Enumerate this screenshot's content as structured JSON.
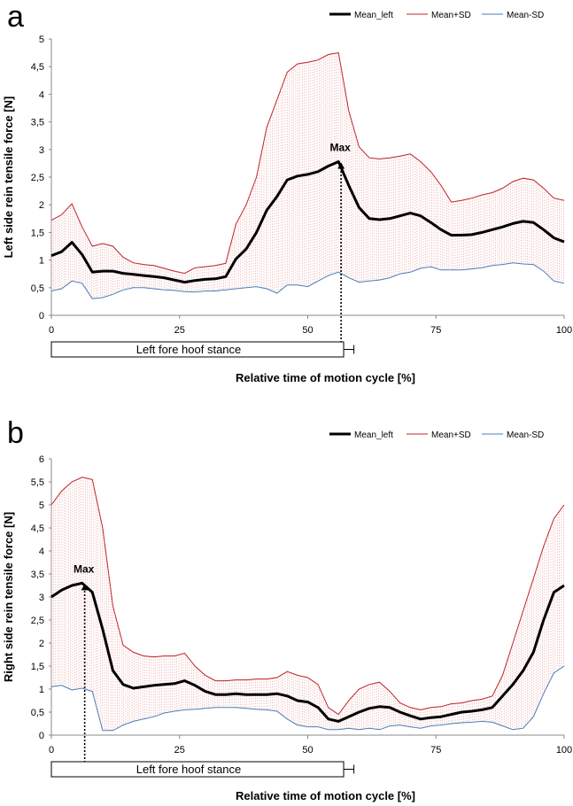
{
  "chart_data": [
    {
      "panel": "a",
      "type": "line",
      "title": "",
      "xlabel": "Relative time of motion cycle [%]",
      "ylabel": "Left side rein tensile force [N]",
      "xlim": [
        0,
        100
      ],
      "ylim": [
        0,
        5
      ],
      "xticks": [
        0,
        25,
        50,
        75,
        100
      ],
      "yticks": [
        "0",
        "0,5",
        "1",
        "1,5",
        "2",
        "2,5",
        "3",
        "3,5",
        "4",
        "4,5",
        "5"
      ],
      "legend": [
        "Mean_left",
        "Mean+SD",
        "Mean-SD"
      ],
      "legend_position": "top-right",
      "colors": {
        "mean": "#000000",
        "plus": "#c0262c",
        "minus": "#4a7ebb",
        "hatch": "#e89a9a"
      },
      "annotation": {
        "label": "Max",
        "x": 56.5,
        "y": 2.78
      },
      "stance_bar": {
        "label": "Left fore hoof stance",
        "start": 0,
        "end": 57,
        "error": 2
      },
      "series": [
        {
          "name": "Mean_left",
          "x": [
            0,
            2,
            4,
            6,
            8,
            10,
            12,
            14,
            16,
            18,
            20,
            22,
            24,
            26,
            28,
            30,
            32,
            34,
            36,
            38,
            40,
            42,
            44,
            46,
            48,
            50,
            52,
            54,
            56,
            58,
            60,
            62,
            64,
            66,
            68,
            70,
            72,
            74,
            76,
            78,
            80,
            82,
            84,
            86,
            88,
            90,
            92,
            94,
            96,
            98,
            100
          ],
          "values": [
            1.08,
            1.15,
            1.32,
            1.1,
            0.78,
            0.8,
            0.8,
            0.76,
            0.74,
            0.72,
            0.7,
            0.68,
            0.64,
            0.6,
            0.63,
            0.65,
            0.66,
            0.7,
            1.02,
            1.2,
            1.5,
            1.9,
            2.15,
            2.45,
            2.52,
            2.55,
            2.6,
            2.7,
            2.78,
            2.35,
            1.95,
            1.75,
            1.73,
            1.75,
            1.8,
            1.85,
            1.8,
            1.68,
            1.55,
            1.45,
            1.45,
            1.46,
            1.5,
            1.55,
            1.6,
            1.66,
            1.7,
            1.68,
            1.55,
            1.4,
            1.33
          ]
        },
        {
          "name": "Mean+SD",
          "x": [
            0,
            2,
            4,
            6,
            8,
            10,
            12,
            14,
            16,
            18,
            20,
            22,
            24,
            26,
            28,
            30,
            32,
            34,
            36,
            38,
            40,
            42,
            44,
            46,
            48,
            50,
            52,
            54,
            56,
            58,
            60,
            62,
            64,
            66,
            68,
            70,
            72,
            74,
            76,
            78,
            80,
            82,
            84,
            86,
            88,
            90,
            92,
            94,
            96,
            98,
            100
          ],
          "values": [
            1.72,
            1.82,
            2.02,
            1.6,
            1.25,
            1.3,
            1.25,
            1.05,
            0.95,
            0.92,
            0.9,
            0.85,
            0.8,
            0.76,
            0.86,
            0.88,
            0.9,
            0.94,
            1.65,
            2.0,
            2.5,
            3.4,
            3.9,
            4.4,
            4.55,
            4.58,
            4.62,
            4.72,
            4.75,
            3.7,
            3.05,
            2.85,
            2.83,
            2.85,
            2.88,
            2.92,
            2.78,
            2.6,
            2.35,
            2.05,
            2.08,
            2.12,
            2.18,
            2.22,
            2.3,
            2.42,
            2.48,
            2.45,
            2.3,
            2.12,
            2.08
          ]
        },
        {
          "name": "Mean-SD",
          "x": [
            0,
            2,
            4,
            6,
            8,
            10,
            12,
            14,
            16,
            18,
            20,
            22,
            24,
            26,
            28,
            30,
            32,
            34,
            36,
            38,
            40,
            42,
            44,
            46,
            48,
            50,
            52,
            54,
            56,
            58,
            60,
            62,
            64,
            66,
            68,
            70,
            72,
            74,
            76,
            78,
            80,
            82,
            84,
            86,
            88,
            90,
            92,
            94,
            96,
            98,
            100
          ],
          "values": [
            0.44,
            0.48,
            0.62,
            0.58,
            0.3,
            0.32,
            0.38,
            0.46,
            0.5,
            0.5,
            0.48,
            0.46,
            0.45,
            0.43,
            0.42,
            0.44,
            0.44,
            0.46,
            0.48,
            0.5,
            0.52,
            0.48,
            0.4,
            0.55,
            0.55,
            0.52,
            0.62,
            0.72,
            0.78,
            0.68,
            0.6,
            0.62,
            0.64,
            0.68,
            0.75,
            0.78,
            0.85,
            0.88,
            0.82,
            0.82,
            0.82,
            0.84,
            0.86,
            0.9,
            0.92,
            0.95,
            0.93,
            0.92,
            0.8,
            0.62,
            0.58
          ]
        }
      ]
    },
    {
      "panel": "b",
      "type": "line",
      "title": "",
      "xlabel": "Relative time of motion cycle [%]",
      "ylabel": "Right side rein tensile force [N]",
      "xlim": [
        0,
        100
      ],
      "ylim": [
        0,
        6
      ],
      "xticks": [
        0,
        25,
        50,
        75,
        100
      ],
      "yticks": [
        "0",
        "0,5",
        "1",
        "1,5",
        "2",
        "2,5",
        "3",
        "3,5",
        "4",
        "4,5",
        "5",
        "5,5",
        "6"
      ],
      "legend": [
        "Mean_left",
        "Mean+SD",
        "Mean-SD"
      ],
      "legend_position": "top-right",
      "colors": {
        "mean": "#000000",
        "plus": "#c0262c",
        "minus": "#4a7ebb",
        "hatch": "#e89a9a"
      },
      "annotation": {
        "label": "Max",
        "x": 6.5,
        "y": 3.3
      },
      "stance_bar": {
        "label": "Left fore hoof stance",
        "start": 0,
        "end": 57,
        "error": 2
      },
      "series": [
        {
          "name": "Mean_left",
          "x": [
            0,
            2,
            4,
            6,
            8,
            10,
            12,
            14,
            16,
            18,
            20,
            22,
            24,
            26,
            28,
            30,
            32,
            34,
            36,
            38,
            40,
            42,
            44,
            46,
            48,
            50,
            52,
            54,
            56,
            58,
            60,
            62,
            64,
            66,
            68,
            70,
            72,
            74,
            76,
            78,
            80,
            82,
            84,
            86,
            88,
            90,
            92,
            94,
            96,
            98,
            100
          ],
          "values": [
            3.0,
            3.15,
            3.25,
            3.3,
            3.1,
            2.3,
            1.4,
            1.1,
            1.02,
            1.05,
            1.08,
            1.1,
            1.12,
            1.18,
            1.08,
            0.95,
            0.88,
            0.88,
            0.9,
            0.88,
            0.88,
            0.88,
            0.9,
            0.85,
            0.75,
            0.72,
            0.6,
            0.35,
            0.3,
            0.4,
            0.5,
            0.58,
            0.62,
            0.6,
            0.5,
            0.42,
            0.35,
            0.38,
            0.4,
            0.45,
            0.5,
            0.52,
            0.55,
            0.6,
            0.85,
            1.1,
            1.4,
            1.8,
            2.5,
            3.1,
            3.25
          ]
        },
        {
          "name": "Mean+SD",
          "x": [
            0,
            2,
            4,
            6,
            8,
            10,
            12,
            14,
            16,
            18,
            20,
            22,
            24,
            26,
            28,
            30,
            32,
            34,
            36,
            38,
            40,
            42,
            44,
            46,
            48,
            50,
            52,
            54,
            56,
            58,
            60,
            62,
            64,
            66,
            68,
            70,
            72,
            74,
            76,
            78,
            80,
            82,
            84,
            86,
            88,
            90,
            92,
            94,
            96,
            98,
            100
          ],
          "values": [
            5.0,
            5.3,
            5.5,
            5.6,
            5.55,
            4.5,
            2.8,
            1.95,
            1.8,
            1.72,
            1.7,
            1.72,
            1.72,
            1.78,
            1.5,
            1.3,
            1.18,
            1.18,
            1.2,
            1.2,
            1.22,
            1.22,
            1.25,
            1.38,
            1.3,
            1.25,
            1.1,
            0.6,
            0.45,
            0.75,
            1.0,
            1.1,
            1.15,
            0.95,
            0.7,
            0.6,
            0.55,
            0.6,
            0.62,
            0.68,
            0.7,
            0.75,
            0.78,
            0.85,
            1.3,
            2.0,
            2.7,
            3.4,
            4.1,
            4.7,
            5.0
          ]
        },
        {
          "name": "Mean-SD",
          "x": [
            0,
            2,
            4,
            6,
            8,
            10,
            12,
            14,
            16,
            18,
            20,
            22,
            24,
            26,
            28,
            30,
            32,
            34,
            36,
            38,
            40,
            42,
            44,
            46,
            48,
            50,
            52,
            54,
            56,
            58,
            60,
            62,
            64,
            66,
            68,
            70,
            72,
            74,
            76,
            78,
            80,
            82,
            84,
            86,
            88,
            90,
            92,
            94,
            96,
            98,
            100
          ],
          "values": [
            1.05,
            1.08,
            0.98,
            1.02,
            0.95,
            0.1,
            0.1,
            0.22,
            0.3,
            0.35,
            0.4,
            0.48,
            0.52,
            0.55,
            0.56,
            0.58,
            0.6,
            0.6,
            0.6,
            0.58,
            0.56,
            0.55,
            0.52,
            0.35,
            0.22,
            0.18,
            0.18,
            0.12,
            0.12,
            0.15,
            0.12,
            0.15,
            0.12,
            0.2,
            0.22,
            0.18,
            0.15,
            0.2,
            0.22,
            0.25,
            0.27,
            0.28,
            0.3,
            0.28,
            0.2,
            0.12,
            0.15,
            0.4,
            0.9,
            1.35,
            1.5
          ]
        }
      ]
    }
  ]
}
